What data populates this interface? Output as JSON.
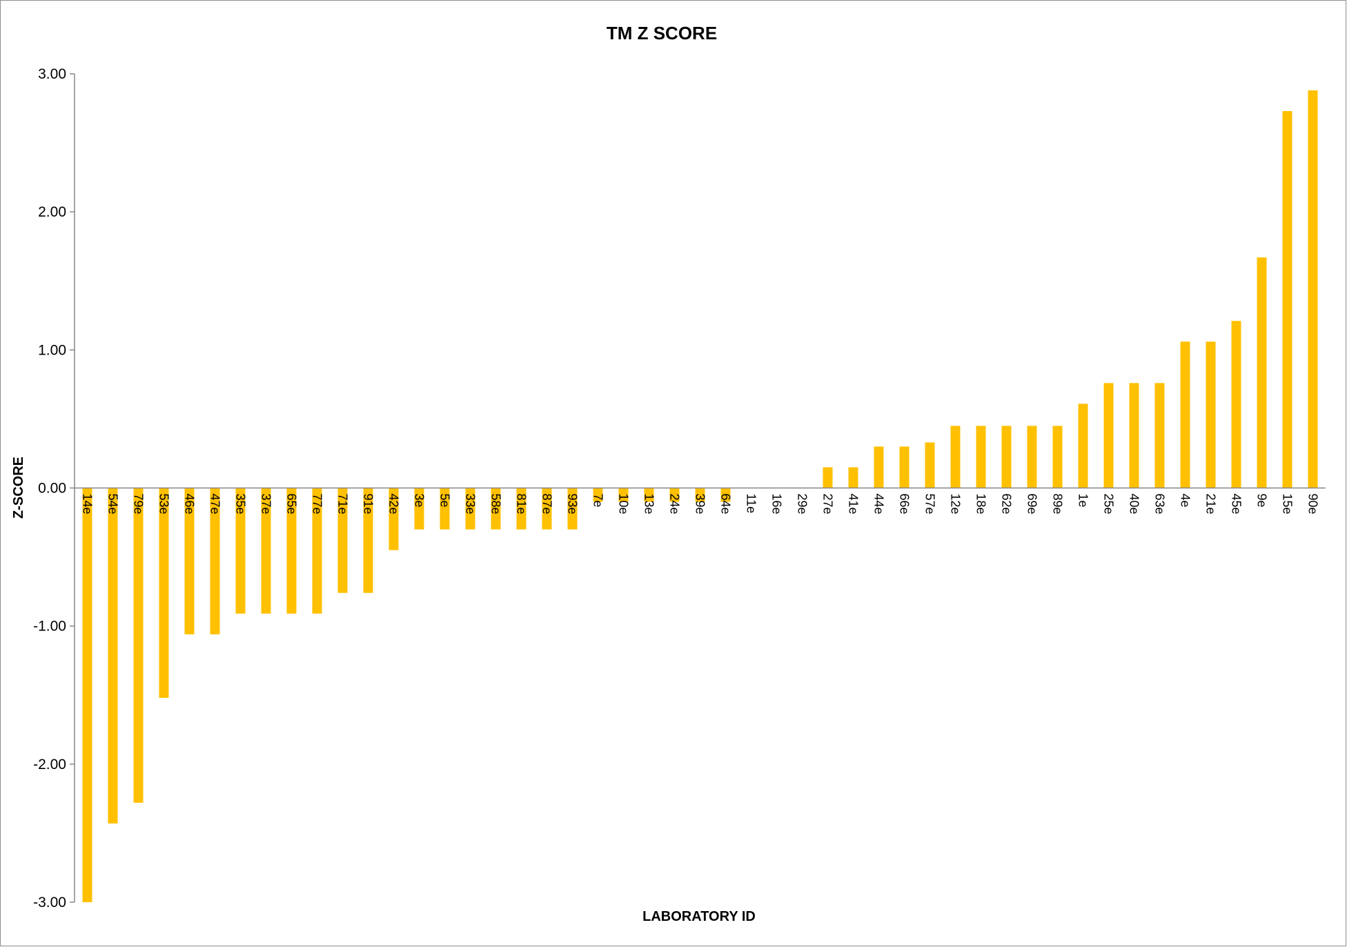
{
  "chart_data": {
    "type": "bar",
    "title": "TM Z SCORE",
    "xlabel": "LABORATORY ID",
    "ylabel": "Z-SCORE",
    "ylim": [
      -3,
      3
    ],
    "yticks": [
      "-3.00",
      "-2.00",
      "-1.00",
      "0.00",
      "1.00",
      "2.00",
      "3.00"
    ],
    "grid": false,
    "legend": "none",
    "bar_color": "#FFC000",
    "categories": [
      "14e",
      "54e",
      "79e",
      "53e",
      "46e",
      "47e",
      "35e",
      "37e",
      "65e",
      "77e",
      "71e",
      "91e",
      "42e",
      "3e",
      "5e",
      "33e",
      "58e",
      "81e",
      "87e",
      "93e",
      "7e",
      "10e",
      "13e",
      "24e",
      "39e",
      "64e",
      "11e",
      "16e",
      "29e",
      "27e",
      "41e",
      "44e",
      "66e",
      "57e",
      "12e",
      "18e",
      "62e",
      "69e",
      "89e",
      "1e",
      "25e",
      "40e",
      "63e",
      "4e",
      "21e",
      "45e",
      "9e",
      "15e",
      "90e"
    ],
    "values": [
      -3.0,
      -2.43,
      -2.28,
      -1.52,
      -1.06,
      -1.06,
      -0.91,
      -0.91,
      -0.91,
      -0.91,
      -0.76,
      -0.76,
      -0.45,
      -0.3,
      -0.3,
      -0.3,
      -0.3,
      -0.3,
      -0.3,
      -0.3,
      -0.1,
      -0.1,
      -0.1,
      -0.1,
      -0.1,
      -0.1,
      0.0,
      0.0,
      0.0,
      0.15,
      0.15,
      0.3,
      0.3,
      0.33,
      0.45,
      0.45,
      0.45,
      0.45,
      0.45,
      0.61,
      0.76,
      0.76,
      0.76,
      1.06,
      1.06,
      1.21,
      1.67,
      2.73,
      2.88
    ]
  }
}
